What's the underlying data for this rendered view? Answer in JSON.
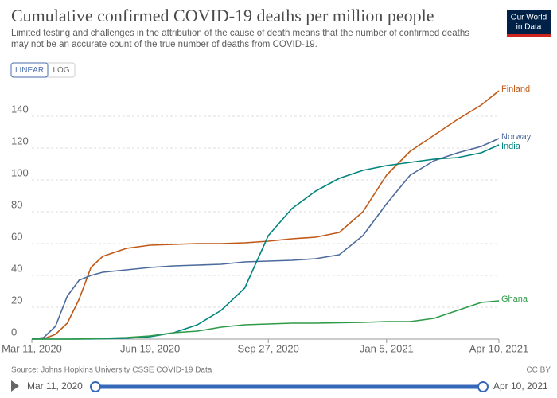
{
  "chart_data": {
    "type": "line",
    "title": "Cumulative confirmed COVID-19 deaths per million people",
    "subtitle": "Limited testing and challenges in the attribution of the cause of death means that the number of confirmed deaths may not be an accurate count of the true number of deaths from COVID-19.",
    "x": [
      "2020-03-11",
      "2020-03-21",
      "2020-03-31",
      "2020-04-10",
      "2020-04-20",
      "2020-04-30",
      "2020-05-10",
      "2020-05-30",
      "2020-06-19",
      "2020-07-09",
      "2020-07-29",
      "2020-08-18",
      "2020-09-07",
      "2020-09-27",
      "2020-10-17",
      "2020-11-06",
      "2020-11-26",
      "2020-12-16",
      "2021-01-05",
      "2021-01-25",
      "2021-02-14",
      "2021-03-06",
      "2021-03-26",
      "2021-04-10"
    ],
    "series": [
      {
        "name": "Finland",
        "color": "#c05917",
        "values": [
          0,
          0.2,
          3,
          10,
          25,
          45,
          52,
          57,
          59,
          59.5,
          60,
          60,
          60.5,
          61.5,
          63,
          64,
          67,
          80,
          103,
          118,
          128,
          138,
          147,
          156
        ]
      },
      {
        "name": "Norway",
        "color": "#4c6a9c",
        "values": [
          0,
          1,
          8,
          27,
          37,
          40,
          42,
          43.5,
          45,
          46,
          46.5,
          47,
          48.5,
          49,
          49.5,
          50.5,
          53,
          65,
          85,
          103,
          112,
          117,
          121,
          126
        ]
      },
      {
        "name": "India",
        "color": "#00847e",
        "values": [
          0,
          0,
          0,
          0,
          0,
          0.1,
          0.2,
          0.5,
          1.5,
          4,
          9,
          18,
          32,
          65,
          82,
          93,
          101,
          106,
          109,
          111,
          113,
          114,
          117,
          122
        ]
      },
      {
        "name": "Ghana",
        "color": "#2e9b48",
        "values": [
          0,
          0,
          0,
          0,
          0.1,
          0.3,
          0.5,
          1,
          2,
          4,
          5,
          7.5,
          9,
          9.5,
          10,
          10,
          10.3,
          10.5,
          11,
          11,
          13,
          18,
          23,
          24
        ]
      }
    ],
    "xlim": [
      "2020-03-11",
      "2021-04-10"
    ],
    "xticks": [
      {
        "value": "2020-03-11",
        "label": "Mar 11, 2020"
      },
      {
        "value": "2020-06-19",
        "label": "Jun 19, 2020"
      },
      {
        "value": "2020-09-27",
        "label": "Sep 27, 2020"
      },
      {
        "value": "2021-01-05",
        "label": "Jan 5, 2021"
      },
      {
        "value": "2021-04-10",
        "label": "Apr 10, 2021"
      }
    ],
    "ylim": [
      0,
      160
    ],
    "yticks": [
      0,
      20,
      40,
      60,
      80,
      100,
      120,
      140
    ],
    "grid": true
  },
  "controls": {
    "linear": "LINEAR",
    "log": "LOG"
  },
  "logo": [
    "Our World",
    "in Data"
  ],
  "source": "Source: Johns Hopkins University CSSE COVID-19 Data",
  "license": "CC BY"
}
